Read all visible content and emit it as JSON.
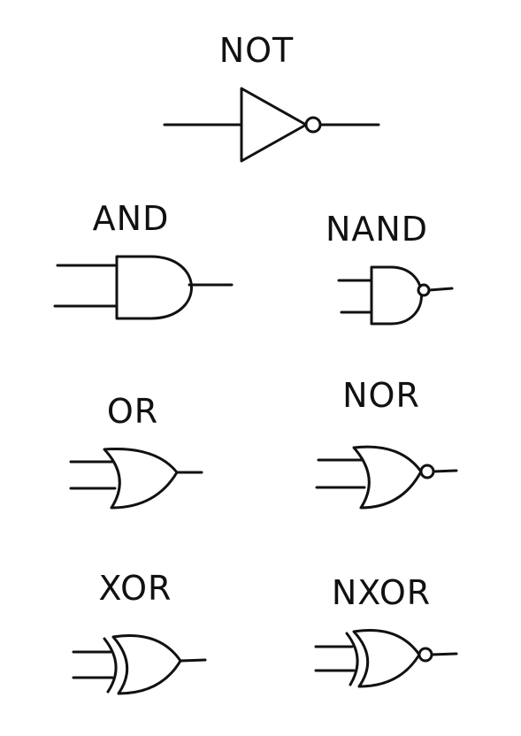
{
  "labels": {
    "not": "NOT",
    "and": "AND",
    "nand": "NAND",
    "or": "OR",
    "nor": "NOR",
    "xor": "XOR",
    "nxor": "NXOR"
  },
  "colors": {
    "stroke": "#111111",
    "background": "#ffffff"
  }
}
